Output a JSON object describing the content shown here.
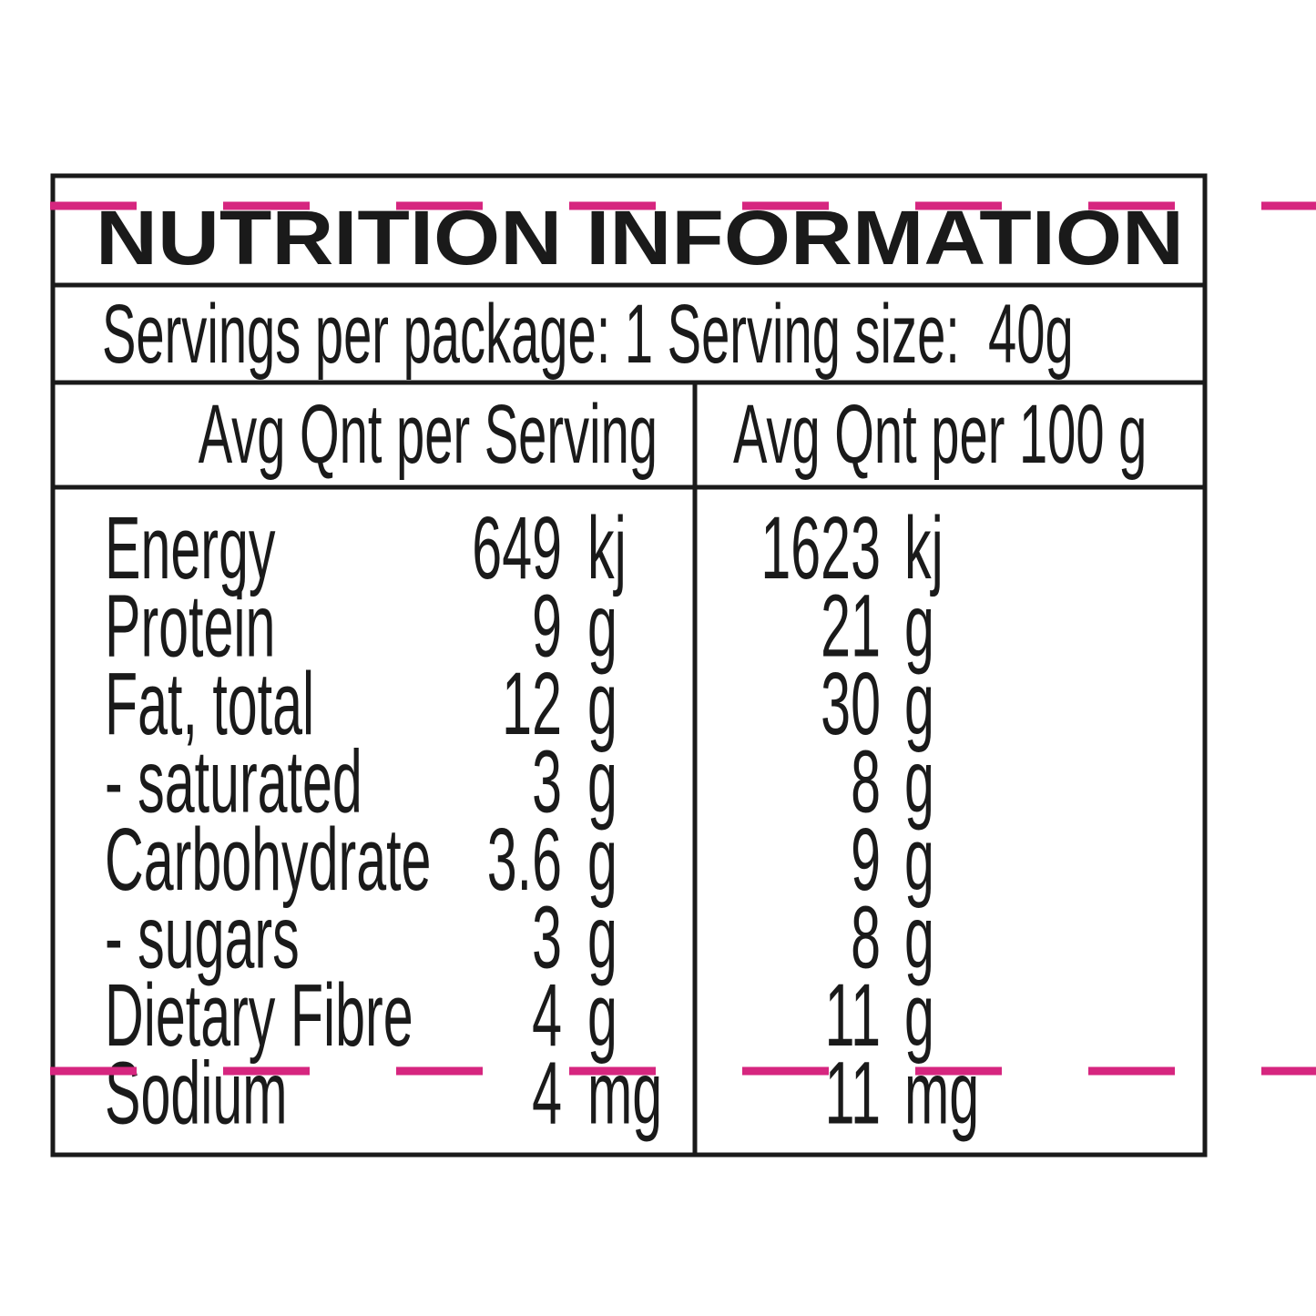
{
  "title": "NUTRITION INFORMATION",
  "servings": "Servings per package: 1 Serving size:  40g",
  "headers": [
    "Avg Qnt per Serving",
    "Avg Qnt per 100 g"
  ],
  "rows": [
    {
      "nutrient": "Energy",
      "per_serving": 649,
      "per_serving_unit": "kj",
      "per_100g": 1623,
      "per_100g_unit": "kj"
    },
    {
      "nutrient": "Protein",
      "per_serving": 9,
      "per_serving_unit": "g",
      "per_100g": 21,
      "per_100g_unit": "g"
    },
    {
      "nutrient": "Fat, total",
      "per_serving": 12,
      "per_serving_unit": "g",
      "per_100g": 30,
      "per_100g_unit": "g"
    },
    {
      "nutrient": "- saturated",
      "per_serving": 3,
      "per_serving_unit": "g",
      "per_100g": 8,
      "per_100g_unit": "g"
    },
    {
      "nutrient": "Carbohydrate",
      "per_serving": 3.6,
      "per_serving_unit": "g",
      "per_100g": 9,
      "per_100g_unit": "g"
    },
    {
      "nutrient": "- sugars",
      "per_serving": 3,
      "per_serving_unit": "g",
      "per_100g": 8,
      "per_100g_unit": "g"
    },
    {
      "nutrient": "Dietary Fibre",
      "per_serving": 4,
      "per_serving_unit": "g",
      "per_100g": 11,
      "per_100g_unit": "g"
    },
    {
      "nutrient": "Sodium",
      "per_serving": 4,
      "per_serving_unit": "mg",
      "per_100g": 11,
      "per_100g_unit": "mg"
    }
  ]
}
